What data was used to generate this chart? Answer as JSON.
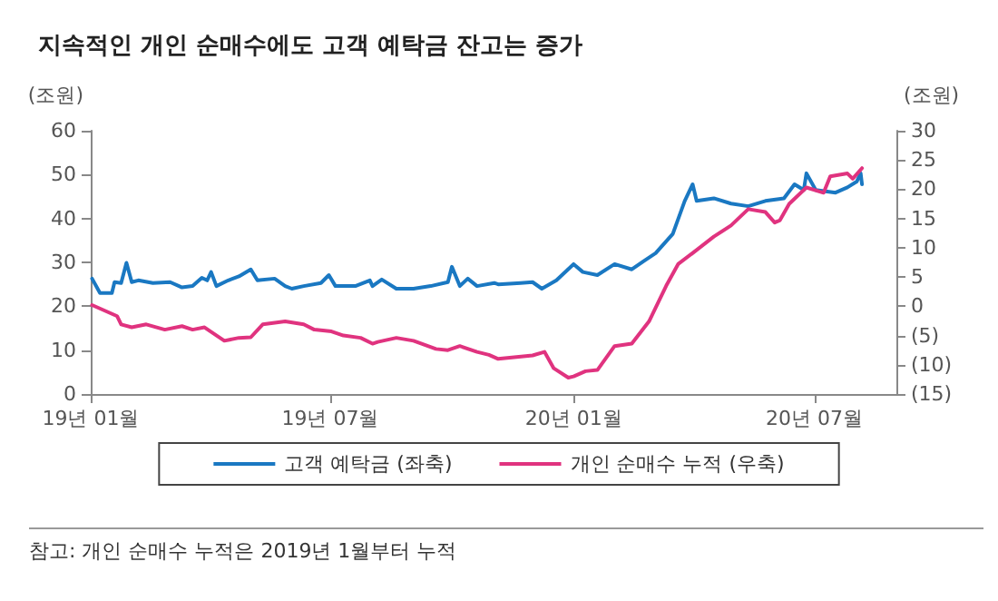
{
  "chart_data": {
    "type": "line",
    "title": "지속적인 개인 순매수에도 고객 예탁금 잔고는 증가",
    "ylabel": "(조원)",
    "y2label": "(조원)",
    "annotations": [
      "참고: 개인 순매수 누적은 2019년 1월부터 누적"
    ],
    "xlim": [
      "2019-01-01",
      "2020-09-01"
    ],
    "xticks": [
      {
        "value": "2019-01-01",
        "label": "19년 01월"
      },
      {
        "value": "2019-07-01",
        "label": "19년 07월"
      },
      {
        "value": "2020-01-01",
        "label": "20년 01월"
      },
      {
        "value": "2020-07-01",
        "label": "20년 07월"
      }
    ],
    "ylim": [
      0,
      60
    ],
    "yticks": [
      0,
      10,
      20,
      30,
      40,
      50,
      60
    ],
    "y2lim": [
      -15,
      30
    ],
    "y2ticks": [
      {
        "value": -15,
        "label": "(15)"
      },
      {
        "value": -10,
        "label": "(10)"
      },
      {
        "value": -5,
        "label": "(5)"
      },
      0,
      5,
      10,
      15,
      20,
      25,
      30
    ],
    "grid": false,
    "legend": "bottom",
    "marker": "none",
    "line_style": "solid",
    "series": [
      {
        "name": "고객 예탁금 (좌축)",
        "color": "#1a78c2",
        "x": [
          "2019-01-02",
          "2019-01-08",
          "2019-01-17",
          "2019-01-19",
          "2019-01-24",
          "2019-01-28",
          "2019-02-01",
          "2019-02-06",
          "2019-02-17",
          "2019-03-02",
          "2019-03-11",
          "2019-03-19",
          "2019-03-26",
          "2019-03-30",
          "2019-04-02",
          "2019-04-06",
          "2019-04-15",
          "2019-04-23",
          "2019-05-02",
          "2019-05-07",
          "2019-05-20",
          "2019-05-28",
          "2019-06-02",
          "2019-06-11",
          "2019-06-24",
          "2019-06-30",
          "2019-07-05",
          "2019-07-20",
          "2019-07-31",
          "2019-08-02",
          "2019-08-09",
          "2019-08-20",
          "2019-09-02",
          "2019-09-15",
          "2019-09-28",
          "2019-10-01",
          "2019-10-07",
          "2019-10-13",
          "2019-10-20",
          "2019-11-02",
          "2019-11-05",
          "2019-11-22",
          "2019-12-01",
          "2019-12-08",
          "2019-12-19",
          "2020-01-01",
          "2020-01-08",
          "2020-01-19",
          "2020-02-01",
          "2020-02-14",
          "2020-02-23",
          "2020-03-03",
          "2020-03-16",
          "2020-03-25",
          "2020-03-31",
          "2020-04-03",
          "2020-04-16",
          "2020-04-29",
          "2020-05-12",
          "2020-05-25",
          "2020-06-08",
          "2020-06-16",
          "2020-06-23",
          "2020-06-25",
          "2020-07-02",
          "2020-07-17",
          "2020-07-26",
          "2020-08-02",
          "2020-08-05",
          "2020-08-06"
        ],
        "values": [
          26.3,
          23,
          23,
          25.5,
          25.3,
          29.9,
          25.5,
          25.9,
          25.3,
          25.5,
          24.3,
          24.6,
          26.5,
          25.9,
          27.8,
          24.6,
          25.9,
          26.8,
          28.4,
          25.9,
          26.3,
          24.6,
          24,
          24.6,
          25.3,
          27.1,
          24.6,
          24.6,
          25.9,
          24.6,
          26.1,
          24,
          24,
          24.6,
          25.5,
          29,
          24.6,
          26.3,
          24.6,
          25.3,
          25,
          25.3,
          25.5,
          24,
          25.9,
          29.6,
          27.8,
          27.1,
          29.6,
          28.4,
          30.3,
          32.1,
          36.5,
          44,
          47.8,
          44,
          44.6,
          43.4,
          42.8,
          44,
          44.6,
          47.8,
          46.5,
          50.3,
          46.5,
          45.9,
          47.1,
          48.4,
          50.3,
          47.8
        ]
      },
      {
        "name": "개인 순매수 누적 (우축)",
        "color": "#e0337f",
        "axis": "y2",
        "x": [
          "2019-01-02",
          "2019-01-21",
          "2019-01-24",
          "2019-02-01",
          "2019-02-12",
          "2019-02-26",
          "2019-03-11",
          "2019-03-19",
          "2019-03-28",
          "2019-04-12",
          "2019-04-23",
          "2019-05-02",
          "2019-05-11",
          "2019-05-28",
          "2019-06-11",
          "2019-06-19",
          "2019-07-02",
          "2019-07-11",
          "2019-07-24",
          "2019-08-02",
          "2019-08-06",
          "2019-08-20",
          "2019-09-02",
          "2019-09-19",
          "2019-09-28",
          "2019-10-07",
          "2019-10-20",
          "2019-10-29",
          "2019-11-05",
          "2019-12-01",
          "2019-12-10",
          "2019-12-17",
          "2019-12-28",
          "2020-01-01",
          "2020-01-10",
          "2020-01-19",
          "2020-02-01",
          "2020-02-14",
          "2020-02-27",
          "2020-03-11",
          "2020-03-20",
          "2020-04-03",
          "2020-04-16",
          "2020-04-29",
          "2020-05-12",
          "2020-05-25",
          "2020-06-01",
          "2020-06-05",
          "2020-06-12",
          "2020-06-25",
          "2020-07-08",
          "2020-07-13",
          "2020-07-26",
          "2020-07-30",
          "2020-08-06"
        ],
        "values": [
          0.2,
          -1.7,
          -3.1,
          -3.6,
          -3.1,
          -4,
          -3.4,
          -4,
          -3.6,
          -5.9,
          -5.4,
          -5.3,
          -3.1,
          -2.6,
          -3.1,
          -4,
          -4.3,
          -5,
          -5.4,
          -6.4,
          -6.1,
          -5.4,
          -5.9,
          -7.3,
          -7.5,
          -6.8,
          -7.8,
          -8.3,
          -9,
          -8.4,
          -7.8,
          -10.6,
          -12.2,
          -12,
          -11.1,
          -10.9,
          -6.8,
          -6.4,
          -2.6,
          3.5,
          7.2,
          9.6,
          11.9,
          13.8,
          16.6,
          16.1,
          14.3,
          14.7,
          17.5,
          20.3,
          19.4,
          22.2,
          22.7,
          21.8,
          23.6
        ]
      }
    ]
  }
}
